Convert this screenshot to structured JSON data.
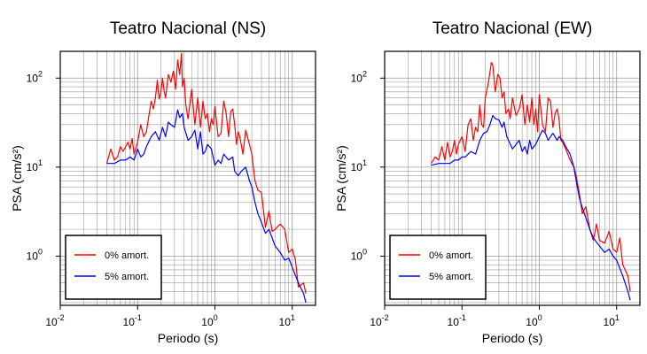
{
  "chart_data": [
    {
      "type": "line",
      "title": "Teatro Nacional (NS)",
      "xlabel": "Periodo (s)",
      "ylabel": "PSA (cm/s²)",
      "xscale": "log",
      "yscale": "log",
      "xlim": [
        0.01,
        20
      ],
      "ylim": [
        0.28,
        200
      ],
      "grid": true,
      "legend": {
        "placement": "bottom-left",
        "entries": [
          "0% amort.",
          "5% amort."
        ]
      },
      "series": [
        {
          "name": "0% amort.",
          "color": "#ff0000",
          "x": [
            0.04,
            0.045,
            0.05,
            0.055,
            0.06,
            0.065,
            0.07,
            0.075,
            0.08,
            0.085,
            0.09,
            0.1,
            0.11,
            0.12,
            0.13,
            0.14,
            0.15,
            0.16,
            0.17,
            0.18,
            0.19,
            0.2,
            0.21,
            0.22,
            0.23,
            0.25,
            0.27,
            0.29,
            0.31,
            0.33,
            0.35,
            0.37,
            0.38,
            0.4,
            0.42,
            0.45,
            0.5,
            0.55,
            0.6,
            0.65,
            0.7,
            0.75,
            0.8,
            0.85,
            0.9,
            0.95,
            1.0,
            1.1,
            1.2,
            1.3,
            1.4,
            1.5,
            1.6,
            1.7,
            1.8,
            1.9,
            2.0,
            2.1,
            2.3,
            2.5,
            2.8,
            3.0,
            3.3,
            3.6,
            4.0,
            4.5,
            5.0,
            5.5,
            6.0,
            7.0,
            8.0,
            9.0,
            10.0,
            11.0,
            12.0,
            14.0,
            15.0
          ],
          "y": [
            11,
            16,
            12,
            13,
            17,
            15,
            17,
            19,
            16,
            21,
            14,
            19,
            30,
            22,
            25,
            38,
            55,
            45,
            60,
            95,
            58,
            70,
            100,
            72,
            60,
            110,
            90,
            120,
            75,
            160,
            110,
            190,
            80,
            100,
            50,
            35,
            75,
            30,
            60,
            28,
            55,
            35,
            40,
            25,
            35,
            30,
            48,
            22,
            24,
            55,
            40,
            22,
            42,
            45,
            30,
            18,
            25,
            22,
            14,
            26,
            18,
            14,
            7,
            5.5,
            5.2,
            2.1,
            3.2,
            1.9,
            2.0,
            2.3,
            2.0,
            1.1,
            1.2,
            0.9,
            0.45,
            0.5,
            0.38
          ]
        },
        {
          "name": "5% amort.",
          "color": "#0000ff",
          "x": [
            0.04,
            0.05,
            0.06,
            0.07,
            0.08,
            0.09,
            0.1,
            0.11,
            0.12,
            0.13,
            0.15,
            0.17,
            0.19,
            0.21,
            0.23,
            0.25,
            0.27,
            0.3,
            0.33,
            0.35,
            0.38,
            0.4,
            0.45,
            0.5,
            0.55,
            0.6,
            0.65,
            0.7,
            0.75,
            0.8,
            0.9,
            1.0,
            1.1,
            1.2,
            1.3,
            1.5,
            1.7,
            1.8,
            2.0,
            2.2,
            2.5,
            2.8,
            3.0,
            3.3,
            3.6,
            4.0,
            4.5,
            5.0,
            6.0,
            7.0,
            8.0,
            9.0,
            10.0,
            12.0,
            14.0,
            15.0
          ],
          "y": [
            11,
            11,
            12,
            12,
            13,
            12,
            16,
            13,
            14,
            17,
            22,
            25,
            20,
            28,
            22,
            32,
            30,
            28,
            44,
            36,
            40,
            28,
            20,
            22,
            26,
            16,
            25,
            14,
            15,
            18,
            16,
            10.5,
            12,
            11,
            14,
            12,
            13,
            9,
            8,
            9,
            10,
            7,
            6,
            4,
            3,
            2.4,
            1.8,
            2.0,
            1.3,
            1.1,
            0.9,
            0.95,
            0.75,
            0.5,
            0.38,
            0.3
          ]
        }
      ]
    },
    {
      "type": "line",
      "title": "Teatro Nacional (EW)",
      "xlabel": "Periodo (s)",
      "ylabel": "PSA (cm/s²)",
      "xscale": "log",
      "yscale": "log",
      "xlim": [
        0.01,
        20
      ],
      "ylim": [
        0.28,
        200
      ],
      "grid": true,
      "legend": {
        "placement": "bottom-left",
        "entries": [
          "0% amort.",
          "5% amort."
        ]
      },
      "series": [
        {
          "name": "0% amort.",
          "color": "#ff0000",
          "x": [
            0.04,
            0.045,
            0.05,
            0.055,
            0.06,
            0.065,
            0.07,
            0.075,
            0.08,
            0.085,
            0.09,
            0.1,
            0.11,
            0.12,
            0.13,
            0.14,
            0.15,
            0.16,
            0.17,
            0.18,
            0.19,
            0.2,
            0.22,
            0.24,
            0.25,
            0.27,
            0.29,
            0.31,
            0.33,
            0.35,
            0.37,
            0.4,
            0.42,
            0.45,
            0.5,
            0.55,
            0.6,
            0.65,
            0.7,
            0.75,
            0.8,
            0.85,
            0.9,
            0.95,
            1.0,
            1.1,
            1.2,
            1.3,
            1.4,
            1.5,
            1.6,
            1.7,
            1.8,
            1.9,
            2.0,
            2.2,
            2.5,
            2.8,
            3.0,
            3.3,
            3.6,
            4.0,
            4.5,
            5.0,
            5.5,
            6.0,
            7.0,
            8.0,
            9.0,
            10.0,
            11.0,
            12.0,
            14.0,
            15.0
          ],
          "y": [
            11,
            13,
            12,
            17,
            12,
            19,
            13,
            15,
            20,
            14,
            18,
            22,
            15,
            30,
            35,
            20,
            28,
            25,
            50,
            30,
            28,
            60,
            90,
            150,
            140,
            70,
            110,
            100,
            60,
            70,
            40,
            45,
            35,
            60,
            38,
            45,
            65,
            30,
            50,
            32,
            60,
            30,
            45,
            25,
            65,
            30,
            25,
            60,
            55,
            28,
            40,
            45,
            35,
            20,
            19,
            16,
            12,
            10,
            8,
            5,
            3,
            3.6,
            2.0,
            1.5,
            2.3,
            1.5,
            1.4,
            1.9,
            1.2,
            1.1,
            1.6,
            0.8,
            0.6,
            0.4
          ]
        },
        {
          "name": "5% amort.",
          "color": "#0000ff",
          "x": [
            0.04,
            0.05,
            0.06,
            0.07,
            0.08,
            0.09,
            0.1,
            0.11,
            0.12,
            0.13,
            0.15,
            0.17,
            0.19,
            0.21,
            0.23,
            0.25,
            0.27,
            0.3,
            0.33,
            0.35,
            0.38,
            0.4,
            0.45,
            0.5,
            0.55,
            0.6,
            0.65,
            0.7,
            0.75,
            0.8,
            0.9,
            1.0,
            1.1,
            1.2,
            1.3,
            1.5,
            1.7,
            1.8,
            2.0,
            2.2,
            2.5,
            2.8,
            3.0,
            3.3,
            3.6,
            4.0,
            4.5,
            5.0,
            6.0,
            7.0,
            8.0,
            9.0,
            10.0,
            12.0,
            14.0,
            15.0
          ],
          "y": [
            10.5,
            11,
            11,
            11,
            12,
            12,
            13,
            13,
            14,
            15,
            14,
            20,
            24,
            25,
            30,
            38,
            35,
            34,
            28,
            32,
            22,
            20,
            16,
            18,
            20,
            15,
            17,
            14,
            20,
            16,
            18,
            22,
            26,
            24,
            20,
            24,
            20,
            22,
            20,
            17,
            14,
            10,
            7,
            4.5,
            3.5,
            2.7,
            2.0,
            1.6,
            1.3,
            1.1,
            1.2,
            1.0,
            0.9,
            0.6,
            0.4,
            0.32
          ]
        }
      ]
    }
  ]
}
